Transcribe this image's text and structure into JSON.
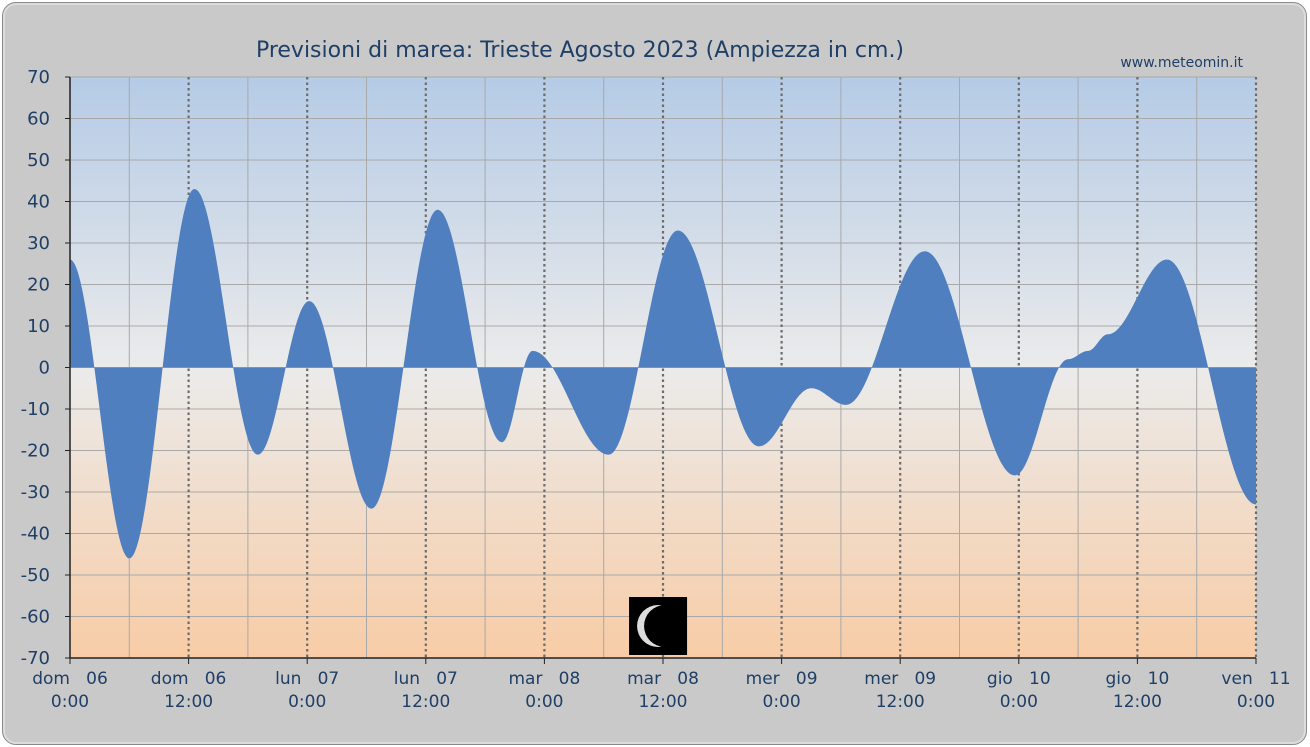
{
  "chart_data": {
    "type": "area",
    "title": "Previsioni di marea: Trieste Agosto 2023 (Ampiezza in cm.)",
    "source": "www.meteomin.it",
    "ylim": [
      -70,
      70
    ],
    "yticks": [
      70,
      60,
      50,
      40,
      30,
      20,
      10,
      0,
      -10,
      -20,
      -30,
      -40,
      -50,
      -60,
      -70
    ],
    "xlim_hours": [
      0,
      120
    ],
    "xtick_labels": [
      {
        "day": "dom   06",
        "time": "0:00"
      },
      {
        "day": "dom   06",
        "time": "12:00"
      },
      {
        "day": "lun   07",
        "time": "0:00"
      },
      {
        "day": "lun   07",
        "time": "12:00"
      },
      {
        "day": "mar   08",
        "time": "0:00"
      },
      {
        "day": "mar   08",
        "time": "12:00"
      },
      {
        "day": "mer   09",
        "time": "0:00"
      },
      {
        "day": "mer   09",
        "time": "12:00"
      },
      {
        "day": "gio   10",
        "time": "0:00"
      },
      {
        "day": "gio   10",
        "time": "12:00"
      },
      {
        "day": "ven   11",
        "time": "0:00"
      }
    ],
    "extrema": [
      {
        "h": 0.0,
        "v": 26
      },
      {
        "h": 6.0,
        "v": -46
      },
      {
        "h": 12.6,
        "v": 43
      },
      {
        "h": 19.0,
        "v": -21
      },
      {
        "h": 24.2,
        "v": 16
      },
      {
        "h": 30.5,
        "v": -34
      },
      {
        "h": 37.2,
        "v": 38
      },
      {
        "h": 43.7,
        "v": -18
      },
      {
        "h": 46.8,
        "v": 4
      },
      {
        "h": 54.5,
        "v": -21
      },
      {
        "h": 61.5,
        "v": 33
      },
      {
        "h": 69.7,
        "v": -19
      },
      {
        "h": 75.0,
        "v": -5
      },
      {
        "h": 78.5,
        "v": -9
      },
      {
        "h": 86.5,
        "v": 28
      },
      {
        "h": 95.6,
        "v": -26
      },
      {
        "h": 101.0,
        "v": 2
      },
      {
        "h": 103.0,
        "v": 4
      },
      {
        "h": 105.0,
        "v": 8
      },
      {
        "h": 111.0,
        "v": 26
      },
      {
        "h": 120.0,
        "v": -33
      }
    ],
    "series_color": "#4f7fbf",
    "moon_phase": "waning-crescent",
    "moon_hour": 59.5,
    "grid": true
  }
}
